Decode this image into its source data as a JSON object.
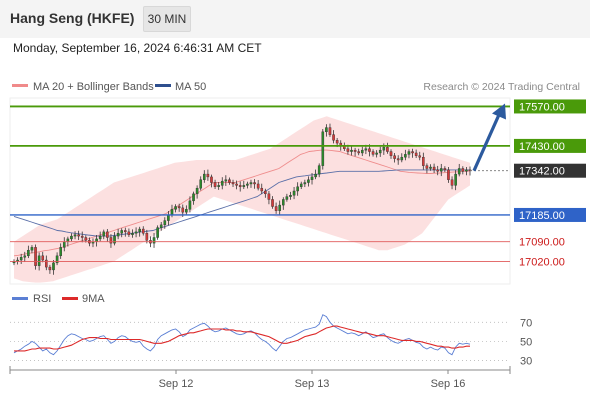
{
  "header": {
    "title": "Hang Seng (HKFE)",
    "timeframe": "30 MIN"
  },
  "date_line": "Monday, September 16, 2024 6:46:31 AM CET",
  "legend": {
    "ma20": "MA 20 + Bollinger Bands",
    "ma50": "MA 50",
    "credit": "Research © 2024 Trading Central"
  },
  "rsi_legend": {
    "rsi": "RSI",
    "ma9": "9MA"
  },
  "colors": {
    "green_level": "#4a9a0a",
    "blue_level": "#2f63c8",
    "red_level": "#e05a5a",
    "current": "#333333",
    "candle_up": "#2a8a2a",
    "candle_down": "#d23a3a",
    "arrow": "#2c5a9e",
    "bollinger": "#fbdada",
    "ma50": "#5a6fa8",
    "rsi": "#5b7fd4",
    "rsi_ma": "#dd2a2a"
  },
  "chart_data": [
    {
      "type": "candlestick",
      "x_ticks": [
        "Sep 12",
        "Sep 13",
        "Sep 16"
      ],
      "ylim": [
        16940,
        17600
      ],
      "levels": [
        {
          "value": 17570,
          "label": "17570.00",
          "kind": "resistance"
        },
        {
          "value": 17430,
          "label": "17430.00",
          "kind": "resistance"
        },
        {
          "value": 17342,
          "label": "17342.00",
          "kind": "current"
        },
        {
          "value": 17185,
          "label": "17185.00",
          "kind": "pivot"
        },
        {
          "value": 17090,
          "label": "17090.00",
          "kind": "support"
        },
        {
          "value": 17020,
          "label": "17020.00",
          "kind": "support"
        }
      ],
      "close_series": [
        17020,
        17025,
        17035,
        17040,
        17060,
        17070,
        17005,
        17040,
        17025,
        17000,
        16990,
        17015,
        17040,
        17070,
        17090,
        17100,
        17110,
        17115,
        17110,
        17105,
        17095,
        17085,
        17090,
        17100,
        17110,
        17125,
        17105,
        17085,
        17110,
        17120,
        17130,
        17125,
        17115,
        17120,
        17125,
        17135,
        17120,
        17095,
        17085,
        17105,
        17140,
        17150,
        17165,
        17185,
        17205,
        17215,
        17210,
        17195,
        17205,
        17235,
        17260,
        17280,
        17310,
        17330,
        17320,
        17300,
        17285,
        17290,
        17305,
        17310,
        17300,
        17295,
        17290,
        17285,
        17290,
        17295,
        17300,
        17295,
        17280,
        17270,
        17260,
        17240,
        17215,
        17200,
        17220,
        17240,
        17250,
        17255,
        17270,
        17285,
        17295,
        17300,
        17310,
        17320,
        17330,
        17360,
        17480,
        17495,
        17470,
        17450,
        17440,
        17430,
        17420,
        17410,
        17415,
        17410,
        17405,
        17415,
        17420,
        17410,
        17400,
        17405,
        17415,
        17425,
        17410,
        17395,
        17385,
        17380,
        17390,
        17400,
        17410,
        17405,
        17395,
        17390,
        17360,
        17350,
        17355,
        17345,
        17340,
        17350,
        17345,
        17310,
        17290,
        17330,
        17350,
        17340,
        17345,
        17342
      ],
      "bollinger_upper": [
        17090,
        17100,
        17110,
        17120,
        17130,
        17140,
        17150,
        17155,
        17160,
        17165,
        17170,
        17180,
        17190,
        17200,
        17210,
        17220,
        17230,
        17240,
        17250,
        17260,
        17270,
        17280,
        17290,
        17300,
        17305,
        17310,
        17315,
        17320,
        17325,
        17330,
        17335,
        17340,
        17345,
        17350,
        17355,
        17360,
        17365,
        17370,
        17372,
        17374,
        17376,
        17378,
        17380,
        17380,
        17380,
        17380,
        17380,
        17380,
        17380,
        17380,
        17380,
        17380,
        17385,
        17390,
        17395,
        17400,
        17405,
        17410,
        17415,
        17420,
        17430,
        17440,
        17450,
        17460,
        17470,
        17480,
        17490,
        17500,
        17510,
        17520,
        17525,
        17530,
        17535,
        17530,
        17525,
        17520,
        17515,
        17510,
        17505,
        17500,
        17495,
        17490,
        17485,
        17480,
        17475,
        17470,
        17465,
        17460,
        17455,
        17450,
        17445,
        17440,
        17435,
        17430,
        17425,
        17420,
        17415,
        17410,
        17405,
        17400,
        17395,
        17390,
        17385,
        17380,
        17375,
        17370
      ],
      "bollinger_lower": [
        16960,
        16955,
        16950,
        16948,
        16946,
        16945,
        16945,
        16946,
        16948,
        16950,
        16955,
        16960,
        16965,
        16970,
        16975,
        16980,
        16985,
        16990,
        16995,
        17000,
        17005,
        17010,
        17015,
        17020,
        17030,
        17040,
        17050,
        17060,
        17070,
        17080,
        17090,
        17100,
        17110,
        17120,
        17130,
        17140,
        17150,
        17160,
        17170,
        17180,
        17190,
        17200,
        17210,
        17220,
        17230,
        17240,
        17250,
        17245,
        17240,
        17235,
        17230,
        17225,
        17220,
        17215,
        17210,
        17205,
        17200,
        17195,
        17190,
        17185,
        17180,
        17175,
        17170,
        17165,
        17160,
        17155,
        17150,
        17145,
        17140,
        17135,
        17130,
        17125,
        17120,
        17115,
        17110,
        17105,
        17100,
        17095,
        17090,
        17085,
        17080,
        17075,
        17070,
        17065,
        17060,
        17060,
        17060,
        17065,
        17070,
        17075,
        17080,
        17090,
        17100,
        17110,
        17120,
        17140,
        17160,
        17180,
        17200,
        17220,
        17240,
        17250,
        17260,
        17270,
        17280,
        17290
      ],
      "ma20": [
        17040,
        17042,
        17045,
        17048,
        17050,
        17052,
        17055,
        17058,
        17060,
        17063,
        17066,
        17070,
        17075,
        17080,
        17085,
        17090,
        17095,
        17100,
        17105,
        17110,
        17115,
        17120,
        17125,
        17130,
        17135,
        17140,
        17145,
        17150,
        17155,
        17160,
        17165,
        17170,
        17175,
        17180,
        17185,
        17190,
        17200,
        17210,
        17220,
        17230,
        17240,
        17250,
        17260,
        17270,
        17280,
        17290,
        17300,
        17300,
        17300,
        17300,
        17300,
        17300,
        17305,
        17310,
        17315,
        17320,
        17325,
        17330,
        17335,
        17340,
        17345,
        17350,
        17360,
        17370,
        17380,
        17390,
        17400,
        17405,
        17410,
        17412,
        17414,
        17415,
        17415,
        17414,
        17412,
        17410,
        17405,
        17400,
        17395,
        17390,
        17385,
        17380,
        17375,
        17370,
        17365,
        17360,
        17355,
        17350,
        17345,
        17340,
        17338,
        17336,
        17335,
        17334,
        17333,
        17332,
        17332,
        17333,
        17334,
        17335,
        17336,
        17337,
        17338,
        17339,
        17340,
        17341
      ],
      "ma50": [
        17180,
        17175,
        17170,
        17165,
        17160,
        17155,
        17150,
        17145,
        17140,
        17135,
        17130,
        17128,
        17125,
        17122,
        17120,
        17118,
        17116,
        17114,
        17112,
        17110,
        17110,
        17110,
        17110,
        17112,
        17114,
        17116,
        17118,
        17120,
        17122,
        17124,
        17126,
        17128,
        17130,
        17135,
        17140,
        17145,
        17150,
        17155,
        17160,
        17165,
        17170,
        17175,
        17180,
        17185,
        17190,
        17195,
        17200,
        17205,
        17210,
        17215,
        17220,
        17225,
        17230,
        17235,
        17240,
        17245,
        17250,
        17260,
        17270,
        17280,
        17290,
        17300,
        17305,
        17310,
        17315,
        17320,
        17322,
        17324,
        17326,
        17328,
        17330,
        17332,
        17334,
        17336,
        17338,
        17340,
        17340,
        17340,
        17340,
        17340,
        17340,
        17340,
        17340,
        17340,
        17340,
        17341,
        17342,
        17343,
        17344,
        17345,
        17345,
        17345,
        17345,
        17345,
        17345,
        17345,
        17345,
        17345,
        17345,
        17345,
        17345,
        17345,
        17345,
        17345,
        17345,
        17345
      ],
      "projection": {
        "from": 17342,
        "to": 17570
      }
    },
    {
      "type": "line",
      "name": "RSI",
      "ylim": [
        20,
        85
      ],
      "y_ticks": [
        70,
        50,
        30
      ],
      "rsi": [
        38,
        40,
        42,
        45,
        47,
        50,
        48,
        44,
        40,
        42,
        38,
        36,
        40,
        46,
        52,
        56,
        58,
        57,
        55,
        53,
        52,
        50,
        51,
        53,
        55,
        56,
        52,
        48,
        50,
        54,
        56,
        55,
        52,
        50,
        49,
        50,
        45,
        42,
        40,
        44,
        52,
        56,
        58,
        60,
        62,
        63,
        60,
        55,
        57,
        62,
        64,
        66,
        68,
        69,
        66,
        62,
        60,
        61,
        63,
        64,
        62,
        60,
        58,
        57,
        58,
        60,
        61,
        59,
        55,
        52,
        50,
        47,
        43,
        40,
        45,
        50,
        53,
        54,
        56,
        58,
        60,
        62,
        63,
        64,
        65,
        68,
        78,
        76,
        70,
        66,
        64,
        62,
        60,
        58,
        59,
        58,
        56,
        58,
        60,
        57,
        54,
        55,
        57,
        58,
        54,
        51,
        49,
        48,
        50,
        52,
        53,
        51,
        49,
        48,
        44,
        42,
        44,
        42,
        41,
        44,
        43,
        38,
        36,
        44,
        48,
        47,
        48,
        47
      ],
      "rsi_ma": [
        40,
        40,
        40,
        40,
        41,
        42,
        42,
        43,
        43,
        43,
        43,
        42,
        42,
        43,
        44,
        45,
        46,
        48,
        50,
        52,
        53,
        54,
        54,
        54,
        53,
        53,
        53,
        52,
        52,
        52,
        52,
        52,
        52,
        52,
        52,
        52,
        51,
        50,
        49,
        48,
        48,
        48,
        49,
        50,
        52,
        54,
        56,
        57,
        58,
        59,
        59,
        60,
        61,
        62,
        63,
        63,
        63,
        63,
        63,
        62,
        62,
        62,
        61,
        61,
        60,
        60,
        60,
        59,
        58,
        57,
        56,
        55,
        53,
        51,
        49,
        48,
        48,
        49,
        50,
        51,
        53,
        55,
        56,
        57,
        58,
        60,
        62,
        64,
        65,
        66,
        66,
        65,
        64,
        63,
        62,
        61,
        60,
        59,
        59,
        58,
        57,
        56,
        56,
        56,
        55,
        54,
        53,
        52,
        51,
        51,
        51,
        51,
        50,
        50,
        49,
        48,
        47,
        46,
        45,
        45,
        44,
        44,
        43,
        43,
        44,
        44,
        45,
        45
      ]
    }
  ]
}
